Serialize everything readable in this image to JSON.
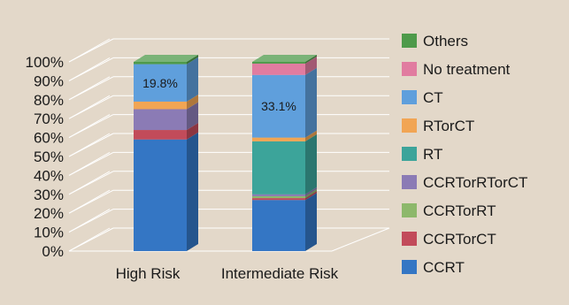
{
  "chart_data": {
    "type": "bar",
    "stacked": true,
    "style": "3d",
    "categories": [
      "High Risk",
      "Intermediate Risk"
    ],
    "ylim": [
      0,
      100
    ],
    "ytick_labels": [
      "0%",
      "10%",
      "20%",
      "30%",
      "40%",
      "50%",
      "60%",
      "70%",
      "80%",
      "90%",
      "100%"
    ],
    "series": [
      {
        "name": "CCRT",
        "color": "#3476c4",
        "values": [
          59,
          27
        ]
      },
      {
        "name": "CCRTorCT",
        "color": "#c24b5a",
        "values": [
          5,
          1
        ]
      },
      {
        "name": "CCRTorRT",
        "color": "#8db86b",
        "values": [
          0,
          1
        ]
      },
      {
        "name": "CCRTorRTorCT",
        "color": "#8b7bb5",
        "values": [
          11,
          1
        ]
      },
      {
        "name": "RT",
        "color": "#3ca49a",
        "values": [
          0,
          28
        ]
      },
      {
        "name": "RTorCT",
        "color": "#f1a554",
        "values": [
          4,
          2
        ]
      },
      {
        "name": "CT",
        "color": "#5f9fdc",
        "values": [
          19.8,
          33.1
        ]
      },
      {
        "name": "No treatment",
        "color": "#e17ca0",
        "values": [
          0,
          6
        ]
      },
      {
        "name": "Others",
        "color": "#4e9a4a",
        "values": [
          1.2,
          0.9
        ]
      }
    ],
    "data_labels": [
      {
        "series": "CT",
        "category": "High Risk",
        "text": "19.8%"
      },
      {
        "series": "CT",
        "category": "Intermediate Risk",
        "text": "33.1%"
      }
    ],
    "legend_order": [
      "Others",
      "No treatment",
      "CT",
      "RTorCT",
      "RT",
      "CCRTorRTorCT",
      "CCRTorRT",
      "CCRTorCT",
      "CCRT"
    ],
    "legend_position": "right",
    "grid": true,
    "background": "#e3d8c9"
  }
}
